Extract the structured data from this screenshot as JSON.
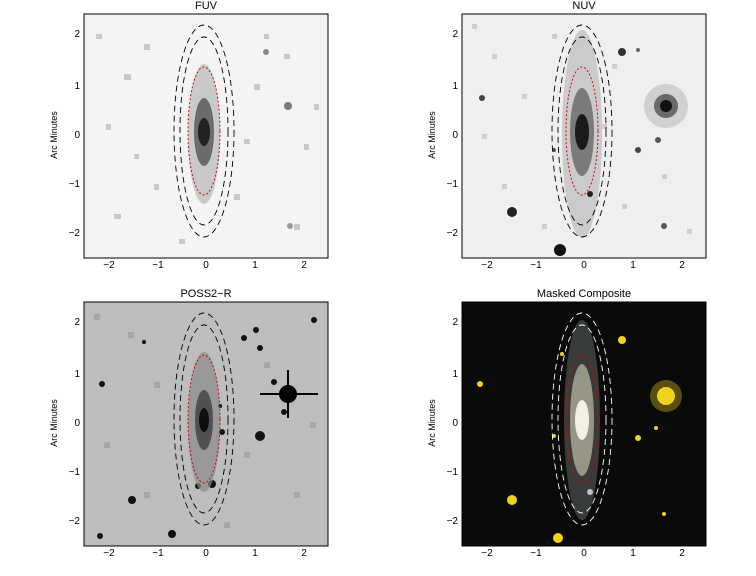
{
  "panels": [
    {
      "id": "fuv",
      "title": "FUV",
      "ylabel": "Arc Minutes",
      "style": "light",
      "ellipse_dash": "#000",
      "inner_color": "#e00000"
    },
    {
      "id": "nuv",
      "title": "NUV",
      "ylabel": "Arc Minutes",
      "style": "light",
      "ellipse_dash": "#000",
      "inner_color": "#e00000"
    },
    {
      "id": "poss2r",
      "title": "POSS2−R",
      "ylabel": "Arc Minutes",
      "style": "gray",
      "ellipse_dash": "#000",
      "inner_color": "#e00000"
    },
    {
      "id": "composite",
      "title": "Masked Composite",
      "ylabel": "Arc Minutes",
      "style": "dark",
      "ellipse_dash": "#ffffff",
      "inner_color": "#e00000"
    }
  ],
  "xticks": [
    "−2",
    "−1",
    "0",
    "1",
    "2"
  ],
  "yticks": [
    "2",
    "1",
    "0",
    "−1",
    "−2"
  ],
  "colors": {
    "background": "#ffffff",
    "composite_bg": "#0a0a08",
    "star_yellow": "#f2d21a",
    "ellipse_red": "#e00000"
  }
}
